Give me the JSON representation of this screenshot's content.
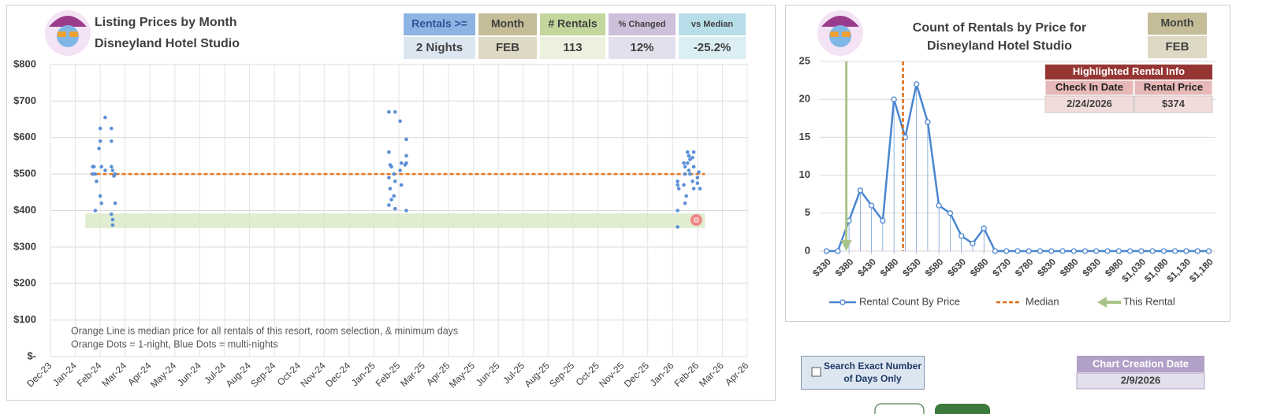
{
  "header": {
    "title": "Listing Prices by Month",
    "subtitle": "Disneyland Hotel Studio"
  },
  "info_boxes": [
    {
      "label": "Rentals >=",
      "value": "2 Nights",
      "color": "#8db4e2",
      "value_color": "#dce6f1"
    },
    {
      "label": "Month",
      "value": "FEB",
      "color": "#c4bd97",
      "value_color": "#ddd9c4"
    },
    {
      "label": "# Rentals",
      "value": "113",
      "color": "#c3d69b",
      "value_color": "#ebf1de"
    },
    {
      "label": "% Changed",
      "value": "12%",
      "color": "#ccc0da",
      "value_color": "#e4dfec"
    },
    {
      "label": "vs Median",
      "value": "-25.2%",
      "color": "#b7dee8",
      "value_color": "#daeef3"
    }
  ],
  "chart_data": [
    {
      "type": "scatter",
      "grid": true,
      "xlim": [
        0,
        28
      ],
      "xticks": [
        {
          "value": 0,
          "label": "Dec-23"
        },
        {
          "value": 1,
          "label": "Jan-24"
        },
        {
          "value": 2,
          "label": "Feb-24"
        },
        {
          "value": 3,
          "label": "Mar-24"
        },
        {
          "value": 4,
          "label": "Apr-24"
        },
        {
          "value": 5,
          "label": "May-24"
        },
        {
          "value": 6,
          "label": "Jun-24"
        },
        {
          "value": 7,
          "label": "Jul-24"
        },
        {
          "value": 8,
          "label": "Aug-24"
        },
        {
          "value": 9,
          "label": "Sep-24"
        },
        {
          "value": 10,
          "label": "Oct-24"
        },
        {
          "value": 11,
          "label": "Nov-24"
        },
        {
          "value": 12,
          "label": "Dec-24"
        },
        {
          "value": 13,
          "label": "Jan-25"
        },
        {
          "value": 14,
          "label": "Feb-25"
        },
        {
          "value": 15,
          "label": "Mar-25"
        },
        {
          "value": 16,
          "label": "Apr-25"
        },
        {
          "value": 17,
          "label": "May-25"
        },
        {
          "value": 18,
          "label": "Jun-25"
        },
        {
          "value": 19,
          "label": "Jul-25"
        },
        {
          "value": 20,
          "label": "Aug-25"
        },
        {
          "value": 21,
          "label": "Sep-25"
        },
        {
          "value": 22,
          "label": "Oct-25"
        },
        {
          "value": 23,
          "label": "Nov-25"
        },
        {
          "value": 24,
          "label": "Dec-25"
        },
        {
          "value": 25,
          "label": "Jan-26"
        },
        {
          "value": 26,
          "label": "Feb-26"
        },
        {
          "value": 27,
          "label": "Mar-26"
        },
        {
          "value": 28,
          "label": "Apr-26"
        }
      ],
      "ylim": [
        0,
        800
      ],
      "yticks": [
        {
          "value": 0,
          "label": "$-"
        },
        {
          "value": 100,
          "label": "$100"
        },
        {
          "value": 200,
          "label": "$200"
        },
        {
          "value": 300,
          "label": "$300"
        },
        {
          "value": 400,
          "label": "$400"
        },
        {
          "value": 500,
          "label": "$500"
        },
        {
          "value": 600,
          "label": "$600"
        },
        {
          "value": 700,
          "label": "$700"
        },
        {
          "value": 800,
          "label": "$800"
        }
      ],
      "band": {
        "x": [
          1.4,
          26.3
        ],
        "y": [
          352,
          392
        ],
        "color": "#d8e9c4"
      },
      "series": [
        {
          "color": "#5b8fd6",
          "x": [
            1.7,
            1.75,
            1.7,
            1.8,
            1.85,
            1.8,
            2.0,
            2.0,
            1.95,
            2.05,
            2.0,
            2.05,
            2.2,
            2.2,
            2.45,
            2.45,
            2.45,
            2.5,
            2.55,
            2.45,
            2.5,
            2.5,
            2.6,
            2.6,
            13.6,
            13.6,
            13.65,
            13.7,
            13.6,
            13.65,
            13.7,
            13.6,
            13.85,
            13.8,
            13.85,
            13.8,
            13.85,
            14.05,
            14.1,
            14.05,
            14.1,
            14.3,
            14.3,
            14.3,
            14.25,
            14.3,
            25.2,
            25.2,
            25.25,
            25.2,
            25.2,
            25.45,
            25.5,
            25.5,
            25.45,
            25.55,
            25.5,
            25.6,
            25.65,
            25.7,
            25.6,
            25.65,
            25.7,
            25.85,
            25.8,
            25.85,
            25.8,
            25.85,
            26.05,
            26.0,
            26.0,
            26.1
          ],
          "values": [
            520,
            520,
            500,
            500,
            480,
            400,
            625,
            590,
            570,
            520,
            440,
            420,
            655,
            510,
            625,
            590,
            520,
            510,
            495,
            390,
            375,
            360,
            500,
            420,
            670,
            560,
            525,
            520,
            490,
            460,
            430,
            415,
            670,
            500,
            480,
            440,
            405,
            645,
            530,
            510,
            470,
            595,
            550,
            530,
            525,
            400,
            470,
            480,
            460,
            400,
            355,
            530,
            520,
            500,
            470,
            440,
            420,
            560,
            550,
            540,
            530,
            510,
            500,
            560,
            545,
            520,
            480,
            460,
            505,
            490,
            475,
            460
          ]
        }
      ],
      "lines": [
        {
          "x": [
            1.6,
            26.3
          ],
          "values": [
            500,
            500
          ],
          "color": "#e87722",
          "dashed": true
        }
      ],
      "highlight": {
        "x": 25.95,
        "value": 374,
        "color": "#f08a8a"
      },
      "annotations": [
        "Orange Line is median price for all rentals of this resort, room selection, & minimum days",
        "Orange Dots = 1-night, Blue Dots = multi-nights"
      ]
    },
    {
      "type": "line",
      "grid": true,
      "title": "Count of Rentals by Price for",
      "subtitle": "Disneyland Hotel Studio",
      "x": [
        330,
        355,
        380,
        405,
        430,
        455,
        480,
        505,
        530,
        555,
        580,
        605,
        630,
        655,
        680,
        705,
        730,
        755,
        780,
        805,
        830,
        855,
        880,
        905,
        930,
        955,
        980,
        1005,
        1030,
        1055,
        1080,
        1105,
        1130,
        1155,
        1180
      ],
      "xlim": [
        315,
        1195
      ],
      "xticks": [
        {
          "value": 330,
          "label": "$330"
        },
        {
          "value": 380,
          "label": "$380"
        },
        {
          "value": 430,
          "label": "$430"
        },
        {
          "value": 480,
          "label": "$480"
        },
        {
          "value": 530,
          "label": "$530"
        },
        {
          "value": 580,
          "label": "$580"
        },
        {
          "value": 630,
          "label": "$630"
        },
        {
          "value": 680,
          "label": "$680"
        },
        {
          "value": 730,
          "label": "$730"
        },
        {
          "value": 780,
          "label": "$780"
        },
        {
          "value": 830,
          "label": "$830"
        },
        {
          "value": 880,
          "label": "$880"
        },
        {
          "value": 930,
          "label": "$930"
        },
        {
          "value": 980,
          "label": "$980"
        },
        {
          "value": 1030,
          "label": "$1,030"
        },
        {
          "value": 1080,
          "label": "$1,080"
        },
        {
          "value": 1130,
          "label": "$1,130"
        },
        {
          "value": 1180,
          "label": "$1,180"
        }
      ],
      "ylim": [
        0,
        25
      ],
      "yticks": [
        0,
        5,
        10,
        15,
        20,
        25
      ],
      "series": [
        {
          "name": "Rental Count By Price",
          "color": "#4a86d0",
          "values": [
            0,
            0,
            4,
            8,
            6,
            4,
            20,
            15,
            22,
            17,
            6,
            5,
            2,
            1,
            3,
            0,
            0,
            0,
            0,
            0,
            0,
            0,
            0,
            0,
            0,
            0,
            0,
            0,
            0,
            0,
            0,
            0,
            0,
            0,
            0
          ]
        }
      ],
      "median": {
        "name": "Median",
        "value": 500,
        "color": "#e06a10"
      },
      "this_rental": {
        "name": "This Rental",
        "value": 374,
        "color": "#a9c48a"
      },
      "legend": "bottom"
    }
  ],
  "month_box": {
    "label": "Month",
    "value": "FEB"
  },
  "highlight_table": {
    "title": "Highlighted Rental Info",
    "columns": [
      "Check In Date",
      "Rental Price"
    ],
    "rows": [
      [
        "2/24/2026",
        "$374"
      ]
    ]
  },
  "checkbox": {
    "label": [
      "Search Exact Number",
      "of Days Only"
    ],
    "checked": false
  },
  "creation_date": {
    "label": "Chart Creation Date",
    "value": "2/9/2026"
  }
}
